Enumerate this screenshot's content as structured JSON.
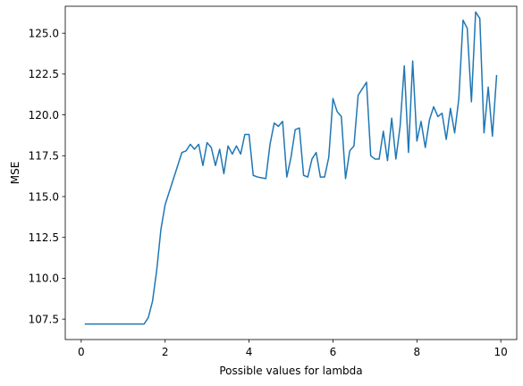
{
  "chart_data": {
    "type": "line",
    "xlabel": "Possible values for lambda",
    "ylabel": "MSE",
    "xlim": [
      -0.38,
      10.38
    ],
    "ylim": [
      106.25,
      126.65
    ],
    "xticks": [
      0,
      2,
      4,
      6,
      8,
      10
    ],
    "xtick_labels": [
      "0",
      "2",
      "4",
      "6",
      "8",
      "10"
    ],
    "yticks": [
      107.5,
      110.0,
      112.5,
      115.0,
      117.5,
      120.0,
      122.5,
      125.0
    ],
    "ytick_labels": [
      "107.5",
      "110.0",
      "112.5",
      "115.0",
      "117.5",
      "120.0",
      "122.5",
      "125.0"
    ],
    "grid": false,
    "series": [
      {
        "color": "#1f77b4",
        "x": [
          0.1,
          0.2,
          0.3,
          0.4,
          0.5,
          0.6,
          0.7,
          0.8,
          0.9,
          1.0,
          1.1,
          1.2,
          1.3,
          1.4,
          1.5,
          1.6,
          1.7,
          1.8,
          1.9,
          2.0,
          2.1,
          2.2,
          2.3,
          2.4,
          2.5,
          2.6,
          2.7,
          2.8,
          2.9,
          3.0,
          3.1,
          3.2,
          3.3,
          3.4,
          3.5,
          3.6,
          3.7,
          3.8,
          3.9,
          4.0,
          4.1,
          4.2,
          4.3,
          4.4,
          4.5,
          4.6,
          4.7,
          4.8,
          4.9,
          5.0,
          5.1,
          5.2,
          5.3,
          5.4,
          5.5,
          5.6,
          5.7,
          5.8,
          5.9,
          6.0,
          6.1,
          6.2,
          6.3,
          6.4,
          6.5,
          6.6,
          6.7,
          6.8,
          6.9,
          7.0,
          7.1,
          7.2,
          7.3,
          7.4,
          7.5,
          7.6,
          7.7,
          7.8,
          7.9,
          8.0,
          8.1,
          8.2,
          8.3,
          8.4,
          8.5,
          8.6,
          8.7,
          8.8,
          8.9,
          9.0,
          9.1,
          9.2,
          9.3,
          9.4,
          9.5,
          9.6,
          9.7,
          9.8,
          9.9
        ],
        "y": [
          107.2,
          107.2,
          107.2,
          107.2,
          107.2,
          107.2,
          107.2,
          107.2,
          107.2,
          107.2,
          107.2,
          107.2,
          107.2,
          107.2,
          107.2,
          107.6,
          108.6,
          110.5,
          113.0,
          114.5,
          115.3,
          116.1,
          116.9,
          117.7,
          117.8,
          118.2,
          117.9,
          118.2,
          116.9,
          118.3,
          118.0,
          116.9,
          117.9,
          116.4,
          118.1,
          117.6,
          118.1,
          117.6,
          118.8,
          118.8,
          116.3,
          116.2,
          116.15,
          116.1,
          118.2,
          119.5,
          119.3,
          119.6,
          116.2,
          117.4,
          119.1,
          119.2,
          116.3,
          116.2,
          117.3,
          117.7,
          116.2,
          116.2,
          117.4,
          121.0,
          120.2,
          119.9,
          116.1,
          117.8,
          118.1,
          121.2,
          121.6,
          122.0,
          117.5,
          117.3,
          117.3,
          119.0,
          117.2,
          119.8,
          117.3,
          119.3,
          123.0,
          117.7,
          123.3,
          118.4,
          119.6,
          118.0,
          119.7,
          120.5,
          119.9,
          120.1,
          118.5,
          120.4,
          118.9,
          121.0,
          125.8,
          125.3,
          120.8,
          126.3,
          125.9,
          118.9,
          121.7,
          118.7,
          122.4
        ]
      }
    ]
  }
}
